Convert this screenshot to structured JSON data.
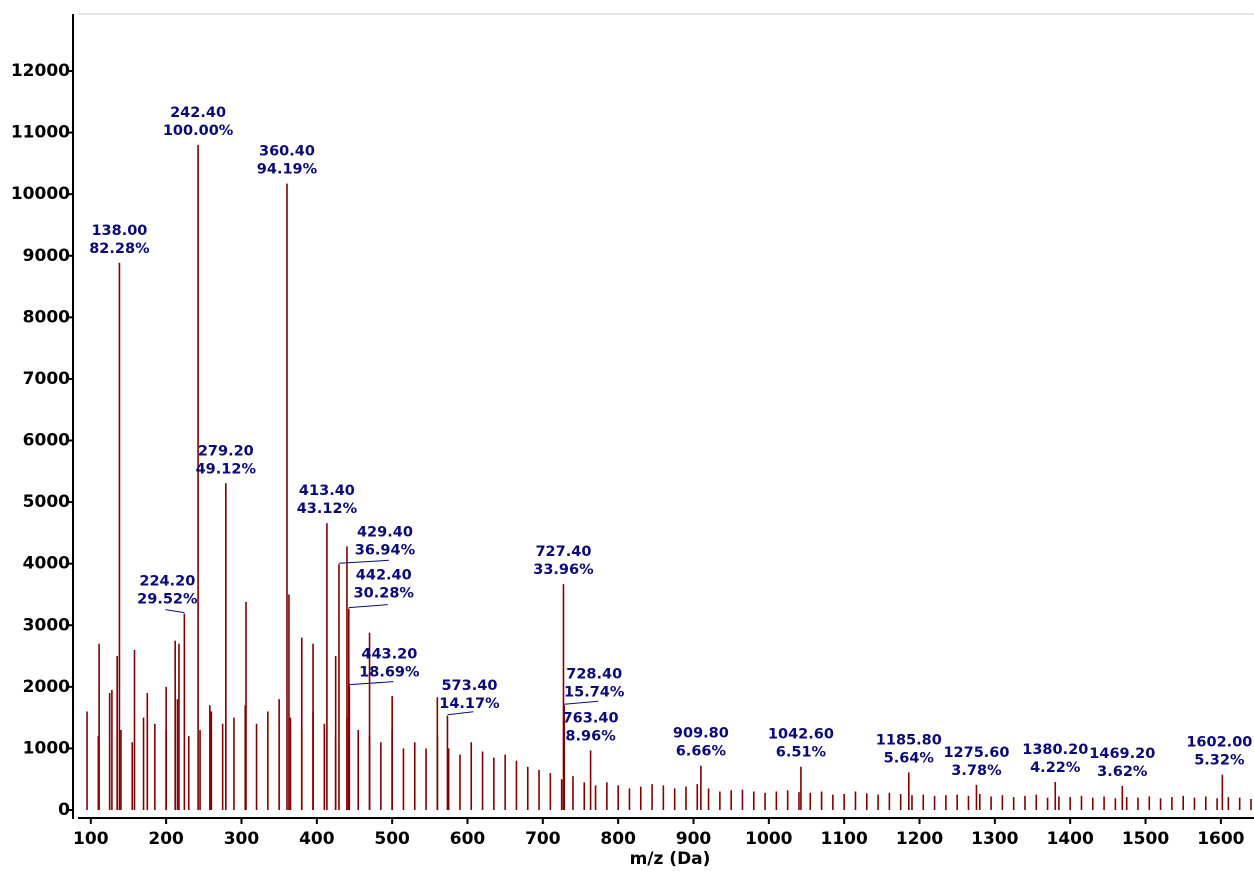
{
  "chart_data": {
    "type": "bar",
    "xlabel": "m/z (Da)",
    "color": "#800000",
    "xlim": [
      83,
      1644
    ],
    "ylim": [
      -130,
      12926
    ],
    "xticks": [
      100,
      200,
      300,
      400,
      500,
      600,
      700,
      800,
      900,
      1000,
      1100,
      1200,
      1300,
      1400,
      1500,
      1600
    ],
    "yticks": [
      0,
      1000,
      2000,
      3000,
      4000,
      5000,
      6000,
      7000,
      8000,
      9000,
      10000,
      11000,
      12000
    ],
    "x": [
      111,
      128,
      135,
      138,
      158,
      175,
      200,
      212,
      217,
      224.2,
      242.4,
      258,
      279.2,
      306,
      360.4,
      363,
      380,
      395,
      413.4,
      425,
      429.4,
      440,
      442.4,
      443.2,
      470,
      500,
      560,
      573.4,
      727.4,
      728.4,
      763.4,
      909.8,
      1042.6,
      1185.8,
      1275.6,
      1380.2,
      1469.2,
      1602,
      95,
      110,
      125,
      140,
      155,
      170,
      185,
      200,
      215,
      230,
      245,
      260,
      275,
      290,
      305,
      320,
      335,
      350,
      365,
      380,
      395,
      410,
      425,
      440,
      455,
      470,
      485,
      500,
      515,
      530,
      545,
      560,
      575,
      590,
      605,
      620,
      635,
      650,
      665,
      680,
      695,
      710,
      725,
      740,
      755,
      770,
      785,
      800,
      815,
      830,
      845,
      860,
      875,
      890,
      905,
      920,
      935,
      950,
      965,
      980,
      995,
      1010,
      1025,
      1040,
      1055,
      1070,
      1085,
      1100,
      1115,
      1130,
      1145,
      1160,
      1175,
      1190,
      1205,
      1220,
      1235,
      1250,
      1265,
      1280,
      1295,
      1310,
      1325,
      1340,
      1355,
      1370,
      1385,
      1400,
      1415,
      1430,
      1445,
      1460,
      1475,
      1490,
      1505,
      1520,
      1535,
      1550,
      1565,
      1580,
      1595,
      1610,
      1625,
      1640
    ],
    "values": [
      2700,
      1950,
      2500,
      8886,
      2600,
      1900,
      2000,
      2750,
      2700,
      3188,
      10800,
      1700,
      5305,
      3380,
      10172,
      3500,
      2800,
      2700,
      4657,
      2500,
      3990,
      4280,
      3270,
      2019,
      2880,
      1850,
      1830,
      1530,
      3668,
      1700,
      968,
      719,
      703,
      609,
      408,
      456,
      391,
      575,
      1600,
      1200,
      1900,
      1300,
      1100,
      1500,
      1400,
      1300,
      1800,
      1200,
      1300,
      1600,
      1400,
      1500,
      1700,
      1400,
      1600,
      1800,
      1500,
      1300,
      1600,
      1400,
      1200,
      1500,
      1300,
      1200,
      1100,
      1300,
      1000,
      1100,
      1000,
      1200,
      1000,
      900,
      1100,
      950,
      850,
      900,
      800,
      700,
      650,
      600,
      500,
      550,
      450,
      400,
      450,
      400,
      350,
      380,
      420,
      400,
      350,
      380,
      420,
      350,
      300,
      320,
      330,
      300,
      280,
      300,
      320,
      290,
      280,
      300,
      250,
      260,
      300,
      270,
      250,
      280,
      260,
      240,
      250,
      230,
      240,
      250,
      230,
      260,
      220,
      240,
      210,
      230,
      250,
      200,
      220,
      210,
      230,
      200,
      220,
      190,
      210,
      200,
      220,
      190,
      210,
      230,
      200,
      220,
      190,
      210,
      200,
      180
    ],
    "annotations": [
      {
        "mz": {
          "value": 138,
          "label": "138.00"
        },
        "percent": {
          "value": 82.28,
          "label": "82.28%"
        }
      },
      {
        "mz": {
          "value": 224.2,
          "label": "224.20"
        },
        "percent": {
          "value": 29.52,
          "label": "29.52%"
        }
      },
      {
        "mz": {
          "value": 242.4,
          "label": "242.40"
        },
        "percent": {
          "value": 100,
          "label": "100.00%"
        }
      },
      {
        "mz": {
          "value": 279.2,
          "label": "279.20"
        },
        "percent": {
          "value": 49.12,
          "label": "49.12%"
        }
      },
      {
        "mz": {
          "value": 360.4,
          "label": "360.40"
        },
        "percent": {
          "value": 94.19,
          "label": "94.19%"
        }
      },
      {
        "mz": {
          "value": 413.4,
          "label": "413.40"
        },
        "percent": {
          "value": 43.12,
          "label": "43.12%"
        }
      },
      {
        "mz": {
          "value": 429.4,
          "label": "429.40"
        },
        "percent": {
          "value": 36.94,
          "label": "36.94%"
        }
      },
      {
        "mz": {
          "value": 442.4,
          "label": "442.40"
        },
        "percent": {
          "value": 30.28,
          "label": "30.28%"
        }
      },
      {
        "mz": {
          "value": 443.2,
          "label": "443.20"
        },
        "percent": {
          "value": 18.69,
          "label": "18.69%"
        }
      },
      {
        "mz": {
          "value": 573.4,
          "label": "573.40"
        },
        "percent": {
          "value": 14.17,
          "label": "14.17%"
        }
      },
      {
        "mz": {
          "value": 727.4,
          "label": "727.40"
        },
        "percent": {
          "value": 33.96,
          "label": "33.96%"
        }
      },
      {
        "mz": {
          "value": 728.4,
          "label": "728.40"
        },
        "percent": {
          "value": 15.74,
          "label": "15.74%"
        }
      },
      {
        "mz": {
          "value": 763.4,
          "label": "763.40"
        },
        "percent": {
          "value": 8.96,
          "label": "8.96%"
        }
      },
      {
        "mz": {
          "value": 909.8,
          "label": "909.80"
        },
        "percent": {
          "value": 6.66,
          "label": "6.66%"
        }
      },
      {
        "mz": {
          "value": 1042.6,
          "label": "1042.60"
        },
        "percent": {
          "value": 6.51,
          "label": "6.51%"
        }
      },
      {
        "mz": {
          "value": 1185.8,
          "label": "1185.80"
        },
        "percent": {
          "value": 5.64,
          "label": "5.64%"
        }
      },
      {
        "mz": {
          "value": 1275.6,
          "label": "1275.60"
        },
        "percent": {
          "value": 3.78,
          "label": "3.78%"
        }
      },
      {
        "mz": {
          "value": 1380.2,
          "label": "1380.20"
        },
        "percent": {
          "value": 4.22,
          "label": "4.22%"
        }
      },
      {
        "mz": {
          "value": 1469.2,
          "label": "1469.20"
        },
        "percent": {
          "value": 3.62,
          "label": "3.62%"
        }
      },
      {
        "mz": {
          "value": 1602,
          "label": "1602.00"
        },
        "percent": {
          "value": 5.32,
          "label": "5.32%"
        }
      }
    ]
  }
}
